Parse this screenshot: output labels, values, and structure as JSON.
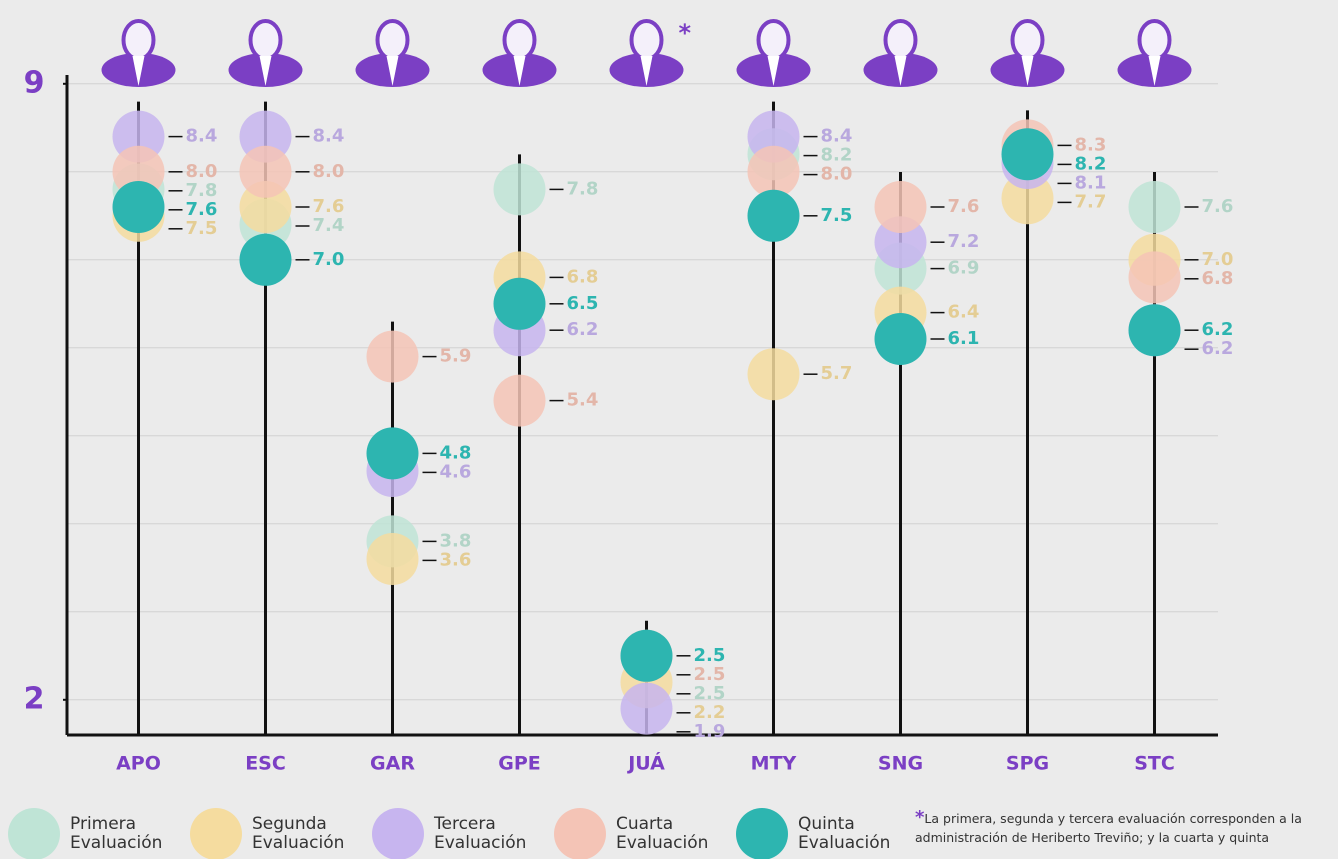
{
  "chart_data": {
    "type": "dot",
    "categories": [
      "APO",
      "ESC",
      "GAR",
      "GPE",
      "JUÁ",
      "MTY",
      "SNG",
      "SPG",
      "STC"
    ],
    "series": [
      {
        "name": "Primera Evaluación",
        "color": "#bfe4d6",
        "values": [
          7.8,
          7.4,
          3.8,
          7.8,
          2.5,
          8.2,
          6.9,
          null,
          7.6
        ],
        "value_labels": [
          "7.8",
          "7.4",
          "3.8",
          "7.8",
          "2.5",
          "8.2",
          "6.9",
          null,
          "7.6"
        ]
      },
      {
        "name": "Segunda Evaluación",
        "color": "#f5dc9f",
        "values": [
          7.5,
          7.6,
          3.6,
          6.8,
          2.2,
          5.7,
          6.4,
          7.7,
          7.0
        ],
        "value_labels": [
          "7.5",
          "7.6",
          "3.6",
          "6.8",
          "2.2",
          "5.7",
          "6.4",
          "7.7",
          "7.0"
        ]
      },
      {
        "name": "Tercera Evaluación",
        "color": "#c7b5ef",
        "values": [
          8.4,
          8.4,
          4.6,
          6.2,
          1.9,
          8.4,
          7.2,
          8.1,
          6.2
        ],
        "value_labels": [
          "8.4",
          "8.4",
          "4.6",
          "6.2",
          "1.9",
          "8.4",
          "7.2",
          "8.1",
          "6.2"
        ]
      },
      {
        "name": "Cuarta Evaluación",
        "color": "#f4c4b6",
        "values": [
          8.0,
          8.0,
          5.9,
          5.4,
          2.5,
          8.0,
          7.6,
          8.3,
          6.8
        ],
        "value_labels": [
          "8.0",
          "8.0",
          "5.9",
          "5.4",
          "2.5",
          "8.0",
          "7.6",
          "8.3",
          "6.8"
        ]
      },
      {
        "name": "Quinta Evaluación",
        "color": "#2db5b0",
        "values": [
          7.6,
          7.0,
          4.8,
          6.5,
          2.5,
          7.5,
          6.1,
          8.2,
          6.2
        ],
        "value_labels": [
          "7.6",
          "7.0",
          "4.8",
          "6.5",
          "2.5",
          "7.5",
          "6.1",
          "8.2",
          "6.2"
        ]
      }
    ],
    "ylim": [
      1.6,
      9.1
    ],
    "yticks": [
      2,
      9
    ],
    "grid": true,
    "grid_step": 1,
    "footnote_marker": "*",
    "footnote_category": "JUÁ",
    "footnote": "La primera, segunda y tercera evaluación corresponden a la administración de Heriberto Treviño; y la cuarta y quinta"
  }
}
